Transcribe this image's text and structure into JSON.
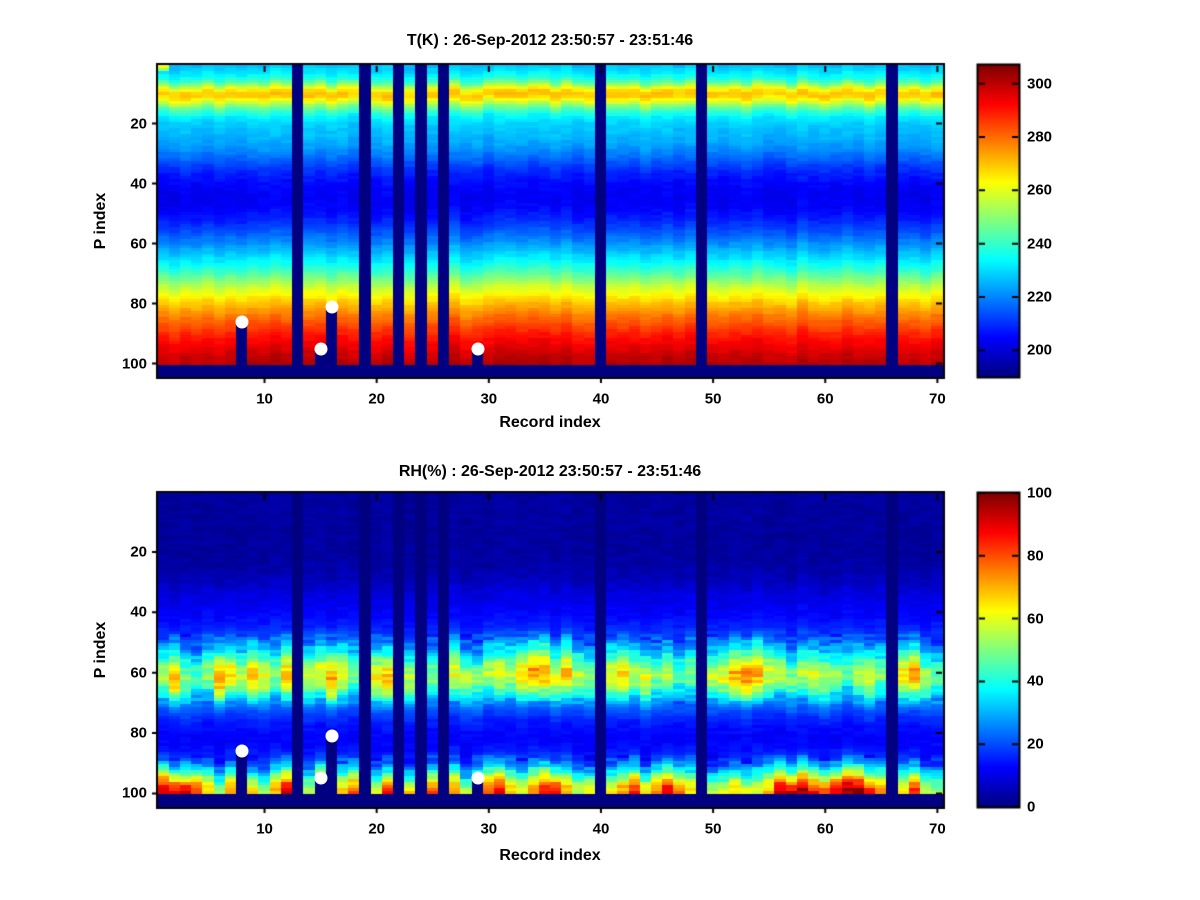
{
  "figure": {
    "background": "#ffffff",
    "colormap": "jet",
    "missing_color": "#00008F",
    "marker_color": "#ffffff"
  },
  "chart_data": [
    {
      "type": "heatmap",
      "title": "T(K) : 26-Sep-2012 23:50:57 - 23:51:46",
      "xlabel": "Record index",
      "ylabel": "P index",
      "x_ticks": [
        10,
        20,
        30,
        40,
        50,
        60,
        70
      ],
      "y_ticks": [
        20,
        40,
        60,
        80,
        100
      ],
      "x_range": [
        1,
        70
      ],
      "y_range": [
        1,
        104
      ],
      "y_axis_reversed": true,
      "grid": false,
      "colorbar_position": "right",
      "colorbar_ticks": [
        300,
        280,
        260,
        240,
        220,
        200
      ],
      "color_min": 190,
      "color_max": 307,
      "units": "K",
      "profile": [
        [
          1,
          227
        ],
        [
          2,
          229
        ],
        [
          3,
          231
        ],
        [
          4,
          234
        ],
        [
          5,
          237
        ],
        [
          6,
          242
        ],
        [
          7,
          250
        ],
        [
          8,
          259
        ],
        [
          9,
          266
        ],
        [
          10,
          270
        ],
        [
          11,
          269
        ],
        [
          12,
          264
        ],
        [
          13,
          258
        ],
        [
          14,
          251
        ],
        [
          15,
          245
        ],
        [
          16,
          240
        ],
        [
          17,
          236
        ],
        [
          18,
          232
        ],
        [
          20,
          229
        ],
        [
          22,
          227
        ],
        [
          24,
          226
        ],
        [
          26,
          224
        ],
        [
          28,
          222
        ],
        [
          30,
          219
        ],
        [
          32,
          216
        ],
        [
          34,
          212
        ],
        [
          36,
          209
        ],
        [
          40,
          205
        ],
        [
          44,
          203
        ],
        [
          48,
          204
        ],
        [
          52,
          208
        ],
        [
          56,
          214
        ],
        [
          60,
          221
        ],
        [
          63,
          227
        ],
        [
          66,
          233
        ],
        [
          69,
          240
        ],
        [
          72,
          249
        ],
        [
          75,
          258
        ],
        [
          78,
          265
        ],
        [
          80,
          270
        ],
        [
          82,
          274
        ],
        [
          85,
          280
        ],
        [
          88,
          285
        ],
        [
          91,
          290
        ],
        [
          94,
          294
        ],
        [
          97,
          298
        ],
        [
          100,
          301
        ]
      ],
      "column_noise_amp": 3,
      "cell_noise_amp": 3,
      "row_jitter_amp": 1.6,
      "overrides": [
        {
          "x": 1,
          "y": 1,
          "v": 262
        },
        {
          "x": 1,
          "y": 2,
          "v": 251
        }
      ],
      "missing_columns": [
        13,
        19,
        22,
        24,
        26,
        40,
        49,
        66
      ],
      "surface_cut": {
        "8": 87,
        "15": 96,
        "16": 82,
        "29": 96
      },
      "bottom_missing_rows": [
        101,
        104
      ],
      "markers": {
        "shape": "circle",
        "points": [
          {
            "x": 8,
            "y": 86
          },
          {
            "x": 15,
            "y": 95
          },
          {
            "x": 16,
            "y": 81
          },
          {
            "x": 29,
            "y": 95
          }
        ]
      }
    },
    {
      "type": "heatmap",
      "title": "RH(%) : 26-Sep-2012 23:50:57 - 23:51:46",
      "xlabel": "Record index",
      "ylabel": "P index",
      "x_ticks": [
        10,
        20,
        30,
        40,
        50,
        60,
        70
      ],
      "y_ticks": [
        20,
        40,
        60,
        80,
        100
      ],
      "x_range": [
        1,
        70
      ],
      "y_range": [
        1,
        104
      ],
      "y_axis_reversed": true,
      "grid": false,
      "colorbar_position": "right",
      "colorbar_ticks": [
        100,
        80,
        60,
        40,
        20,
        0
      ],
      "color_min": 0,
      "color_max": 100,
      "units": "%",
      "profile": [
        [
          1,
          3
        ],
        [
          20,
          3
        ],
        [
          26,
          4
        ],
        [
          30,
          6
        ],
        [
          34,
          9
        ],
        [
          38,
          11
        ],
        [
          42,
          13
        ],
        [
          46,
          16
        ],
        [
          50,
          24
        ],
        [
          53,
          34
        ],
        [
          56,
          45
        ],
        [
          58,
          52
        ],
        [
          60,
          57
        ],
        [
          62,
          57
        ],
        [
          64,
          52
        ],
        [
          66,
          45
        ],
        [
          68,
          36
        ],
        [
          70,
          28
        ],
        [
          72,
          22
        ],
        [
          75,
          17
        ],
        [
          78,
          14
        ],
        [
          82,
          12
        ],
        [
          85,
          13
        ],
        [
          88,
          18
        ],
        [
          90,
          26
        ],
        [
          92,
          38
        ],
        [
          94,
          52
        ],
        [
          96,
          68
        ],
        [
          98,
          80
        ],
        [
          100,
          88
        ]
      ],
      "column_noise_amp": 1,
      "cell_noise_amp": 3,
      "row_jitter_amp": 2.5,
      "mid_band": {
        "p_start": 45,
        "p_full_lo": 50,
        "p_full_hi": 68,
        "p_end": 73,
        "base_peak": 57,
        "per_column": [
          55,
          70,
          50,
          45,
          52,
          72,
          65,
          55,
          68,
          60,
          50,
          68,
          null,
          55,
          60,
          70,
          62,
          50,
          null,
          65,
          68,
          null,
          55,
          null,
          50,
          null,
          60,
          55,
          50,
          55,
          60,
          55,
          65,
          72,
          72,
          60,
          68,
          55,
          50,
          null,
          60,
          65,
          55,
          60,
          50,
          55,
          45,
          50,
          null,
          55,
          60,
          70,
          75,
          72,
          60,
          55,
          50,
          55,
          60,
          55,
          50,
          45,
          55,
          60,
          50,
          null,
          65,
          72,
          55,
          45
        ]
      },
      "bottom_band": {
        "p_start": 85,
        "p_full_lo": 90,
        "base_peak": 90,
        "per_column": [
          98,
          100,
          96,
          90,
          70,
          60,
          75,
          60,
          65,
          55,
          70,
          95,
          null,
          60,
          88,
          85,
          70,
          80,
          null,
          65,
          90,
          null,
          70,
          null,
          85,
          null,
          75,
          60,
          88,
          80,
          90,
          70,
          60,
          75,
          85,
          95,
          70,
          60,
          70,
          null,
          65,
          75,
          85,
          70,
          80,
          90,
          75,
          65,
          null,
          55,
          60,
          70,
          65,
          60,
          70,
          95,
          100,
          98,
          90,
          85,
          95,
          98,
          100,
          90,
          75,
          null,
          70,
          85,
          65,
          55
        ]
      },
      "missing_columns": [
        13,
        19,
        22,
        24,
        26,
        40,
        49,
        66
      ],
      "surface_cut": {
        "8": 87,
        "15": 96,
        "16": 82,
        "29": 96
      },
      "bottom_missing_rows": [
        101,
        104
      ],
      "markers": {
        "shape": "circle",
        "points": [
          {
            "x": 8,
            "y": 86
          },
          {
            "x": 15,
            "y": 95
          },
          {
            "x": 16,
            "y": 81
          },
          {
            "x": 29,
            "y": 95
          }
        ]
      }
    }
  ]
}
